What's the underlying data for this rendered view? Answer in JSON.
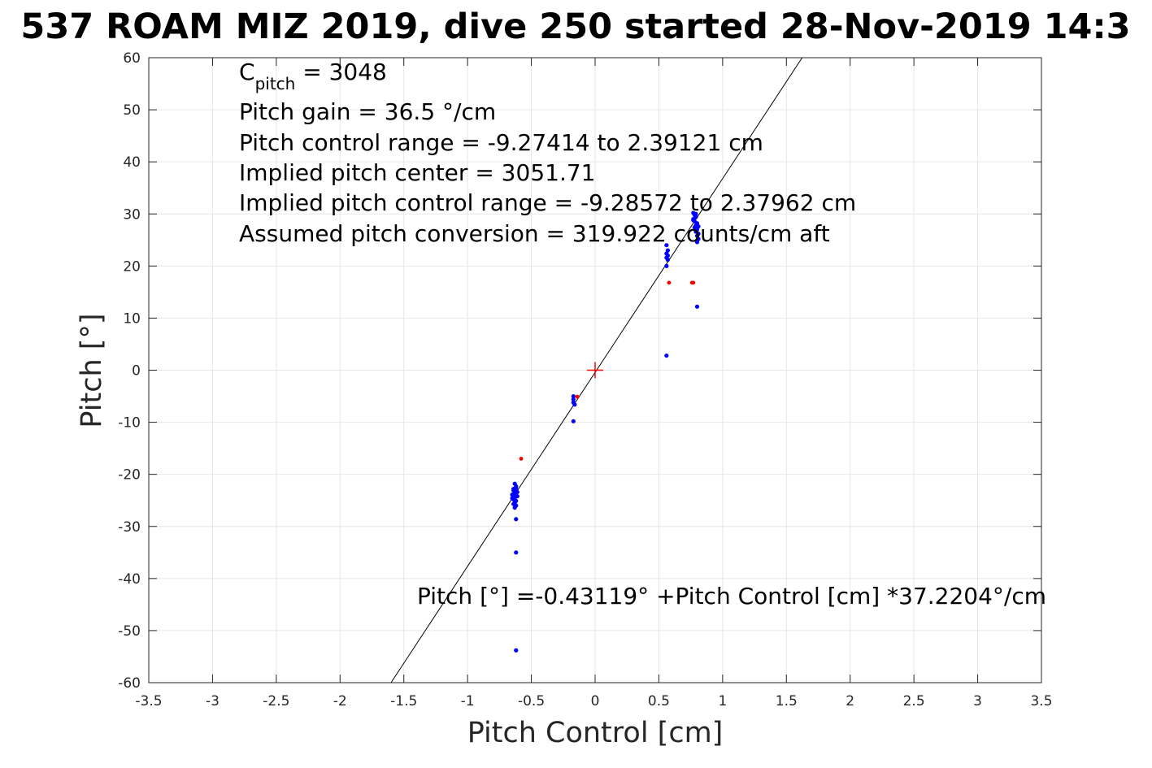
{
  "chart_data": {
    "type": "scatter",
    "title": "537 ROAM MIZ 2019, dive 250 started 28-Nov-2019 14:3",
    "xlabel": "Pitch Control [cm]",
    "ylabel": "Pitch [°]",
    "xlim": [
      -3.5,
      3.5
    ],
    "ylim": [
      -60,
      60
    ],
    "grid": true,
    "xticks": [
      -3.5,
      -3,
      -2.5,
      -2,
      -1.5,
      -1,
      -0.5,
      0,
      0.5,
      1,
      1.5,
      2,
      2.5,
      3,
      3.5
    ],
    "xtick_labels": [
      "-3.5",
      "-3",
      "-2.5",
      "-2",
      "-1.5",
      "-1",
      "-0.5",
      "0",
      "0.5",
      "1",
      "1.5",
      "2",
      "2.5",
      "3",
      "3.5"
    ],
    "yticks": [
      -60,
      -50,
      -40,
      -30,
      -20,
      -10,
      0,
      10,
      20,
      30,
      40,
      50,
      60
    ],
    "ytick_labels": [
      "-60",
      "-50",
      "-40",
      "-30",
      "-20",
      "-10",
      "0",
      "10",
      "20",
      "30",
      "40",
      "50",
      "60"
    ],
    "colors": {
      "blue_points": "#0000ff",
      "red_points": "#ff0000",
      "fit_line": "#000000",
      "center_marker": "#ff0000"
    },
    "fit_line": {
      "intercept": -0.43119,
      "slope": 37.2204
    },
    "center_marker": {
      "x": 0,
      "y": 0
    },
    "annotations": {
      "c_pitch_main": "C",
      "c_pitch_sub": "pitch",
      "c_pitch_value": " = 3048",
      "pitch_gain": "Pitch gain = 36.5 °/cm",
      "control_range": "Pitch control range = -9.27414 to 2.39121 cm",
      "implied_center": "Implied pitch center = 3051.71",
      "implied_range": "Implied pitch control range = -9.28572 to 2.37962 cm",
      "conversion": "Assumed pitch conversion = 319.922 counts/cm aft",
      "fit_equation": "Pitch [°] =-0.43119° +Pitch Control [cm] *37.2204°/cm"
    },
    "series": [
      {
        "color": "blue",
        "points": [
          [
            -0.63,
            -21.8
          ],
          [
            -0.62,
            -22.3
          ],
          [
            -0.64,
            -22.8
          ],
          [
            -0.62,
            -23.2
          ],
          [
            -0.63,
            -23.6
          ],
          [
            -0.65,
            -23.9
          ],
          [
            -0.61,
            -24.2
          ],
          [
            -0.63,
            -24.5
          ],
          [
            -0.64,
            -24.8
          ],
          [
            -0.62,
            -25.1
          ],
          [
            -0.63,
            -25.4
          ],
          [
            -0.64,
            -25.7
          ],
          [
            -0.62,
            -26.0
          ],
          [
            -0.63,
            -26.4
          ],
          [
            -0.64,
            -23.1
          ],
          [
            -0.61,
            -23.4
          ],
          [
            -0.65,
            -24.6
          ],
          [
            -0.62,
            -22.6
          ],
          [
            -0.63,
            -25.0
          ],
          [
            -0.64,
            -24.1
          ],
          [
            -0.62,
            -28.6
          ],
          [
            -0.62,
            -35.0
          ],
          [
            -0.62,
            -53.8
          ],
          [
            -0.17,
            -5.0
          ],
          [
            -0.17,
            -5.6
          ],
          [
            -0.17,
            -6.2
          ],
          [
            -0.16,
            -6.6
          ],
          [
            -0.17,
            -9.8
          ],
          [
            0.56,
            24.0
          ],
          [
            0.57,
            23.0
          ],
          [
            0.56,
            22.4
          ],
          [
            0.57,
            22.0
          ],
          [
            0.56,
            21.6
          ],
          [
            0.57,
            21.2
          ],
          [
            0.56,
            20.0
          ],
          [
            0.56,
            2.8
          ],
          [
            0.77,
            30.2
          ],
          [
            0.78,
            29.8
          ],
          [
            0.79,
            29.4
          ],
          [
            0.77,
            29.0
          ],
          [
            0.78,
            28.6
          ],
          [
            0.8,
            28.2
          ],
          [
            0.79,
            27.8
          ],
          [
            0.78,
            27.4
          ],
          [
            0.8,
            27.0
          ],
          [
            0.79,
            26.6
          ],
          [
            0.81,
            26.2
          ],
          [
            0.8,
            25.8
          ],
          [
            0.81,
            25.2
          ],
          [
            0.8,
            24.6
          ],
          [
            0.77,
            28.8
          ],
          [
            0.79,
            30.0
          ],
          [
            0.81,
            27.6
          ],
          [
            0.8,
            12.2
          ]
        ]
      },
      {
        "color": "red",
        "points": [
          [
            -0.58,
            -17.0
          ],
          [
            -0.14,
            -5.1
          ],
          [
            0.58,
            16.8
          ],
          [
            0.76,
            16.8
          ],
          [
            0.77,
            16.8
          ]
        ]
      }
    ]
  }
}
